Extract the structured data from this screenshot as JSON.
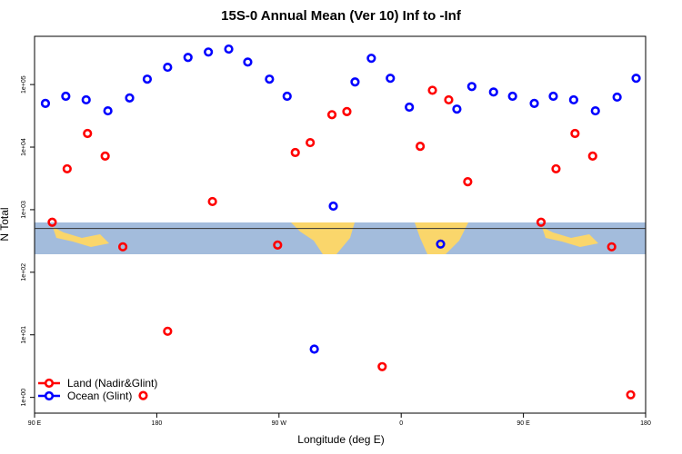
{
  "chart_data": {
    "type": "scatter",
    "title": "15S-0 Annual Mean (Ver 10)   Inf to -Inf",
    "x_label": "Longitude (deg E)",
    "y_label": "N Total",
    "log_y": true,
    "legend": "lower left",
    "xlim": [
      90,
      540
    ],
    "xticks": [
      {
        "value": 90,
        "label": "90 E"
      },
      180,
      {
        "value": 270,
        "label": "90 W"
      },
      {
        "value": 360,
        "label": "0"
      },
      {
        "value": 450,
        "label": "90 E"
      },
      {
        "value": 540,
        "label": "180"
      }
    ],
    "ylim": [
      0.56,
      590000
    ],
    "yticks": [
      {
        "value": 1,
        "label": "1e+00"
      },
      {
        "value": 10,
        "label": "1e+01"
      },
      {
        "value": 100,
        "label": "1e+02"
      },
      {
        "value": 1000,
        "label": "1e+03"
      },
      {
        "value": 10000,
        "label": "1e+04"
      },
      {
        "value": 100000,
        "label": "1e+05"
      }
    ],
    "reference_line": 500,
    "series": [
      {
        "name": "Land (Nadir&Glint)",
        "color": "#ff0000",
        "x": [
          103,
          114,
          129,
          142,
          155,
          170,
          188,
          221,
          269,
          282,
          293,
          309,
          320,
          346,
          374,
          383,
          395,
          409,
          463,
          474,
          488,
          501,
          515,
          529
        ],
        "values": [
          630,
          4500,
          16500,
          7200,
          255,
          1.07,
          11.4,
          1350,
          272,
          8200,
          11800,
          33000,
          37000,
          3.1,
          10300,
          81000,
          57000,
          2800,
          630,
          4500,
          16500,
          7200,
          255,
          1.1
        ]
      },
      {
        "name": "Ocean (Glint)",
        "color": "#0000ff",
        "x": [
          98,
          113,
          128,
          144,
          160,
          173,
          188,
          203,
          218,
          233,
          247,
          263,
          276,
          296,
          310,
          326,
          338,
          352,
          366,
          389,
          401,
          412,
          428,
          442,
          458,
          472,
          487,
          503,
          519,
          533
        ],
        "values": [
          50000,
          65000,
          57000,
          38000,
          61000,
          122000,
          189000,
          271000,
          331000,
          369000,
          229000,
          122000,
          65000,
          5.9,
          1140,
          110000,
          263000,
          126000,
          43500,
          282,
          40500,
          93000,
          76000,
          65000,
          50000,
          65000,
          57000,
          38000,
          63000,
          126000
        ]
      }
    ]
  }
}
